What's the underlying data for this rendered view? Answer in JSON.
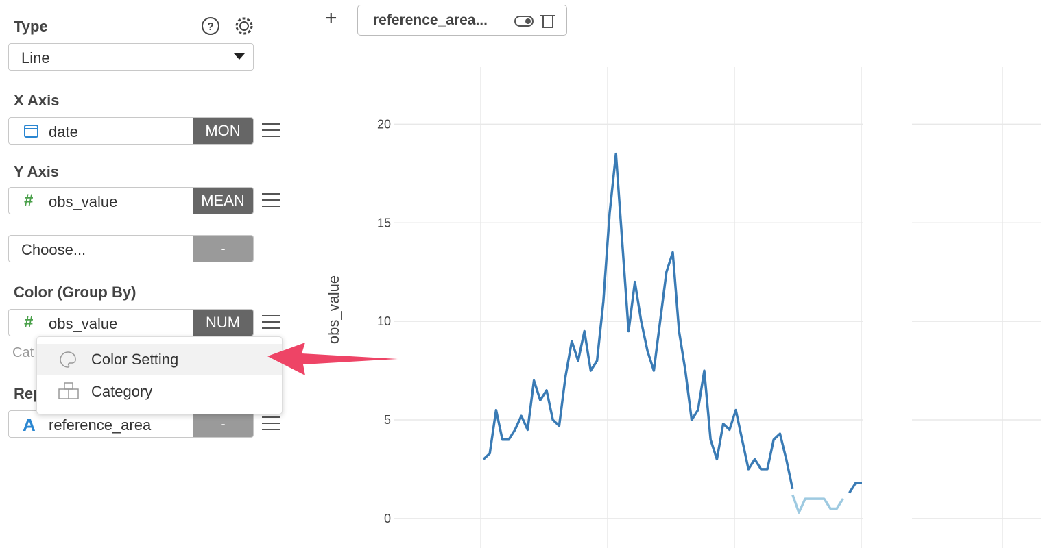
{
  "sidebar": {
    "type_label": "Type",
    "type_value": "Line",
    "x_axis_label": "X Axis",
    "x_field": "date",
    "x_agg": "MON",
    "y_axis_label": "Y Axis",
    "y_field": "obs_value",
    "y_agg": "MEAN",
    "y2_placeholder": "Choose...",
    "y2_agg": "-",
    "color_label": "Color (Group By)",
    "color_field": "obs_value",
    "color_agg": "NUM",
    "category_hint": "Cat",
    "repeat_label": "Rep",
    "repeat_field": "reference_area",
    "repeat_agg": "-"
  },
  "menu": {
    "items": [
      "Color Setting",
      "Category"
    ]
  },
  "tab": {
    "add": "+",
    "label": "reference_area..."
  },
  "chart_data": {
    "type": "line",
    "y_label": "obs_value",
    "ylim": [
      -1.5,
      22.9
    ],
    "yticks": [
      0,
      5,
      10,
      15,
      20
    ],
    "grid": true,
    "series": [
      {
        "color": "#3a7bb5",
        "values": [
          3,
          3.3,
          5.5,
          4,
          4,
          4.5,
          5.2,
          4.5,
          7,
          6,
          6.5,
          5,
          4.7,
          7.2,
          9,
          8,
          9.5,
          7.5,
          8,
          11,
          15.5,
          18.5,
          14,
          9.5,
          12,
          10,
          8.5,
          7.5,
          10,
          12.5,
          13.5,
          9.5,
          7.5,
          5,
          5.5,
          7.5,
          4,
          3,
          4.8,
          4.5,
          5.5,
          4,
          2.5,
          3,
          2.5,
          2.5,
          4,
          4.3,
          3,
          1.5,
          null,
          null,
          null,
          null,
          null,
          null,
          null,
          null,
          1.3,
          1.8,
          1.8
        ]
      },
      {
        "color": "#9ecae1",
        "values": [
          null,
          null,
          null,
          null,
          null,
          null,
          null,
          null,
          null,
          null,
          null,
          null,
          null,
          null,
          null,
          null,
          null,
          null,
          null,
          null,
          null,
          null,
          null,
          null,
          null,
          null,
          null,
          null,
          null,
          null,
          null,
          null,
          null,
          null,
          null,
          null,
          null,
          null,
          null,
          null,
          null,
          null,
          null,
          null,
          null,
          null,
          null,
          null,
          null,
          1.2,
          0.3,
          1,
          1,
          1,
          1,
          0.5,
          0.5,
          1,
          null,
          null,
          null
        ]
      }
    ]
  }
}
